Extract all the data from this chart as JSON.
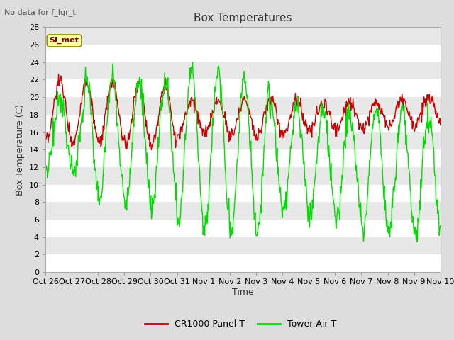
{
  "title": "Box Temperatures",
  "xlabel": "Time",
  "ylabel": "Box Temperature (C)",
  "no_data_text": "No data for f_lgr_t",
  "legend_label": "SI_met",
  "ylim": [
    0,
    28
  ],
  "yticks": [
    0,
    2,
    4,
    6,
    8,
    10,
    12,
    14,
    16,
    18,
    20,
    22,
    24,
    26,
    28
  ],
  "xtick_labels": [
    "Oct 26",
    "Oct 27",
    "Oct 28",
    "Oct 29",
    "Oct 30",
    "Oct 31",
    "Nov 1",
    "Nov 2",
    "Nov 3",
    "Nov 4",
    "Nov 5",
    "Nov 6",
    "Nov 7",
    "Nov 8",
    "Nov 9",
    "Nov 10"
  ],
  "line1_color": "#cc0000",
  "line2_color": "#00dd00",
  "line1_label": "CR1000 Panel T",
  "line2_label": "Tower Air T",
  "outer_bg_color": "#dddddd",
  "plot_bg_color": "#e8e8e8",
  "grid_color": "#ffffff",
  "title_fontsize": 11,
  "axis_fontsize": 9,
  "tick_fontsize": 8,
  "legend_fontsize": 9
}
